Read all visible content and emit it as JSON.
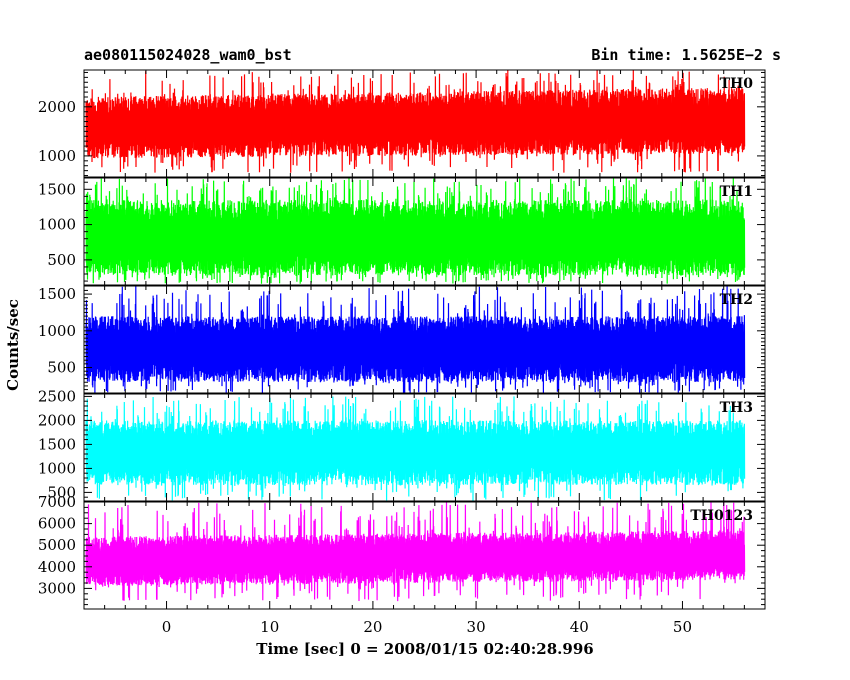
{
  "header": {
    "left": "ae080115024028_wam0_bst",
    "right": "Bin time: 1.5625E−2 s"
  },
  "chart_data": {
    "type": "line",
    "title": "ae080115024028_wam0_bst",
    "bin_time": "Bin time: 1.5625E−2 s",
    "xlabel": "Time [sec] 0 = 2008/01/15 02:40:28.996",
    "ylabel": "Counts/sec",
    "xlim": [
      -8,
      58
    ],
    "data_x_range": [
      -7.8,
      56.0
    ],
    "x_ticks": [
      0,
      10,
      20,
      30,
      40,
      50
    ],
    "grid": false,
    "panels": [
      {
        "name": "TH0",
        "color": "#ff0000",
        "ylim": [
          550,
          2750
        ],
        "y_ticks": [
          1000,
          2000
        ],
        "trend": [
          [
            -8,
            1550
          ],
          [
            20,
            1700
          ],
          [
            40,
            1650
          ],
          [
            56,
            1650
          ]
        ],
        "band_low": [
          [
            -8,
            950
          ],
          [
            56,
            1050
          ]
        ],
        "band_high": [
          [
            -8,
            2200
          ],
          [
            56,
            2400
          ]
        ],
        "spike_max": 2750,
        "dip_min": 650
      },
      {
        "name": "TH1",
        "color": "#00ff00",
        "ylim": [
          130,
          1660
        ],
        "y_ticks": [
          500,
          1000,
          1500
        ],
        "trend": [
          [
            -8,
            780
          ],
          [
            56,
            780
          ]
        ],
        "band_low": [
          [
            -8,
            280
          ],
          [
            56,
            280
          ]
        ],
        "band_high": [
          [
            -8,
            1350
          ],
          [
            56,
            1350
          ]
        ],
        "spike_max": 1660,
        "dip_min": 160
      },
      {
        "name": "TH2",
        "color": "#0000ff",
        "ylim": [
          140,
          1610
        ],
        "y_ticks": [
          500,
          1000,
          1500
        ],
        "trend": [
          [
            -8,
            760
          ],
          [
            56,
            760
          ]
        ],
        "band_low": [
          [
            -8,
            300
          ],
          [
            56,
            300
          ]
        ],
        "band_high": [
          [
            -8,
            1200
          ],
          [
            56,
            1200
          ]
        ],
        "spike_max": 1610,
        "dip_min": 150
      },
      {
        "name": "TH3",
        "color": "#00ffff",
        "ylim": [
          300,
          2550
        ],
        "y_ticks": [
          500,
          1000,
          1500,
          2000,
          2500
        ],
        "trend": [
          [
            -8,
            1350
          ],
          [
            56,
            1350
          ]
        ],
        "band_low": [
          [
            -8,
            650
          ],
          [
            56,
            650
          ]
        ],
        "band_high": [
          [
            -8,
            2000
          ],
          [
            56,
            2000
          ]
        ],
        "spike_max": 2500,
        "dip_min": 320
      },
      {
        "name": "TH0123",
        "color": "#ff00ff",
        "ylim": [
          2000,
          7000
        ],
        "y_ticks": [
          3000,
          4000,
          5000,
          6000,
          7000
        ],
        "trend": [
          [
            -8,
            4150
          ],
          [
            20,
            4500
          ],
          [
            40,
            4450
          ],
          [
            56,
            4400
          ]
        ],
        "band_low": [
          [
            -8,
            3100
          ],
          [
            56,
            3400
          ]
        ],
        "band_high": [
          [
            -8,
            5400
          ],
          [
            56,
            5700
          ]
        ],
        "spike_max": 7000,
        "dip_min": 2400
      }
    ]
  }
}
